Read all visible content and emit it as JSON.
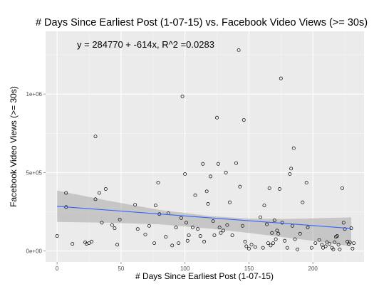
{
  "chart_data": {
    "type": "scatter",
    "title": "# Days Since Earliest Post (1-07-15) vs. Facebook Video Views (>= 30s)",
    "xlabel": "# Days Since Earliest Post (1-07-15)",
    "ylabel": "Facebook Video Views (>= 30s)",
    "annotation": "y = 284770 + -614x, R^2 =0.0283",
    "xlim": [
      -9,
      240
    ],
    "ylim": [
      -70000,
      1400000
    ],
    "x_ticks": [
      0,
      50,
      100,
      150,
      200
    ],
    "x_tick_labels": [
      "0",
      "50",
      "100",
      "150",
      "200"
    ],
    "y_ticks": [
      0,
      500000,
      1000000
    ],
    "y_tick_labels": [
      "0e+00",
      "5e+05",
      "1e+06"
    ],
    "grid": true,
    "regression": {
      "intercept": 284770,
      "slope": -614,
      "x_range": [
        0,
        230
      ],
      "ci_upper": [
        [
          0,
          385000
        ],
        [
          40,
          320000
        ],
        [
          80,
          262000
        ],
        [
          120,
          222000
        ],
        [
          150,
          206000
        ],
        [
          180,
          204000
        ],
        [
          205,
          209000
        ],
        [
          230,
          214000
        ]
      ],
      "ci_lower": [
        [
          0,
          185000
        ],
        [
          40,
          180000
        ],
        [
          80,
          170000
        ],
        [
          120,
          142000
        ],
        [
          150,
          115000
        ],
        [
          180,
          85000
        ],
        [
          205,
          60000
        ],
        [
          230,
          30000
        ]
      ],
      "line_color": "#3366ff",
      "band_color": "#999999"
    },
    "colors": {
      "panel": "#ebebeb",
      "grid": "#ffffff",
      "points": "#000000"
    },
    "points": [
      [
        0,
        95000
      ],
      [
        7,
        370000
      ],
      [
        7,
        280000
      ],
      [
        12,
        45000
      ],
      [
        22,
        55000
      ],
      [
        23,
        45000
      ],
      [
        25,
        50000
      ],
      [
        27,
        60000
      ],
      [
        30,
        730000
      ],
      [
        30,
        330000
      ],
      [
        33,
        370000
      ],
      [
        35,
        180000
      ],
      [
        38,
        395000
      ],
      [
        43,
        165000
      ],
      [
        45,
        145000
      ],
      [
        47,
        40000
      ],
      [
        49,
        200000
      ],
      [
        61,
        295000
      ],
      [
        63,
        140000
      ],
      [
        69,
        105000
      ],
      [
        72,
        160000
      ],
      [
        76,
        50000
      ],
      [
        77,
        290000
      ],
      [
        79,
        435000
      ],
      [
        80,
        235000
      ],
      [
        85,
        90000
      ],
      [
        87,
        240000
      ],
      [
        90,
        35000
      ],
      [
        93,
        150000
      ],
      [
        95,
        50000
      ],
      [
        97,
        210000
      ],
      [
        98,
        985000
      ],
      [
        100,
        490000
      ],
      [
        101,
        180000
      ],
      [
        102,
        65000
      ],
      [
        103,
        100000
      ],
      [
        106,
        150000
      ],
      [
        108,
        355000
      ],
      [
        110,
        140000
      ],
      [
        112,
        95000
      ],
      [
        114,
        555000
      ],
      [
        115,
        60000
      ],
      [
        117,
        380000
      ],
      [
        118,
        300000
      ],
      [
        120,
        475000
      ],
      [
        122,
        190000
      ],
      [
        123,
        100000
      ],
      [
        125,
        850000
      ],
      [
        126,
        555000
      ],
      [
        127,
        150000
      ],
      [
        128,
        115000
      ],
      [
        130,
        130000
      ],
      [
        132,
        500000
      ],
      [
        133,
        165000
      ],
      [
        135,
        310000
      ],
      [
        137,
        100000
      ],
      [
        140,
        560000
      ],
      [
        142,
        1280000
      ],
      [
        143,
        410000
      ],
      [
        145,
        160000
      ],
      [
        146,
        835000
      ],
      [
        147,
        60000
      ],
      [
        148,
        30000
      ],
      [
        150,
        15000
      ],
      [
        152,
        40000
      ],
      [
        155,
        25000
      ],
      [
        159,
        215000
      ],
      [
        161,
        20000
      ],
      [
        162,
        290000
      ],
      [
        164,
        170000
      ],
      [
        165,
        50000
      ],
      [
        166,
        400000
      ],
      [
        167,
        35000
      ],
      [
        168,
        115000
      ],
      [
        169,
        50000
      ],
      [
        170,
        195000
      ],
      [
        171,
        75000
      ],
      [
        172,
        130000
      ],
      [
        173,
        110000
      ],
      [
        174,
        395000
      ],
      [
        175,
        1100000
      ],
      [
        176,
        180000
      ],
      [
        178,
        65000
      ],
      [
        180,
        20000
      ],
      [
        182,
        490000
      ],
      [
        183,
        525000
      ],
      [
        184,
        160000
      ],
      [
        185,
        655000
      ],
      [
        186,
        75000
      ],
      [
        188,
        10000
      ],
      [
        190,
        110000
      ],
      [
        192,
        310000
      ],
      [
        195,
        435000
      ],
      [
        196,
        150000
      ],
      [
        199,
        20000
      ],
      [
        202,
        50000
      ],
      [
        205,
        70000
      ],
      [
        207,
        40000
      ],
      [
        208,
        20000
      ],
      [
        210,
        30000
      ],
      [
        211,
        55000
      ],
      [
        213,
        45000
      ],
      [
        215,
        20000
      ],
      [
        216,
        10000
      ],
      [
        217,
        55000
      ],
      [
        218,
        90000
      ],
      [
        219,
        95000
      ],
      [
        220,
        40000
      ],
      [
        221,
        10000
      ],
      [
        223,
        400000
      ],
      [
        224,
        180000
      ],
      [
        225,
        140000
      ],
      [
        227,
        60000
      ],
      [
        228,
        45000
      ],
      [
        229,
        55000
      ],
      [
        230,
        145000
      ],
      [
        231,
        15000
      ],
      [
        232,
        50000
      ]
    ]
  }
}
